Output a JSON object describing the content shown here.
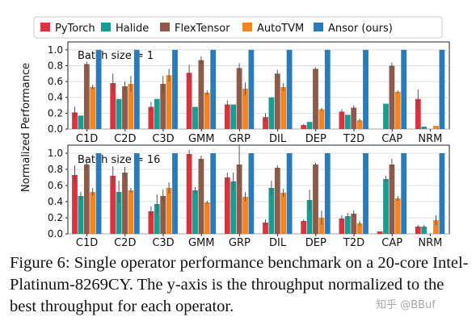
{
  "caption": "Figure 6: Single operator performance benchmark on a 20-core Intel-Platinum-8269CY. The y-axis is the throughput normalized to the best throughput for each operator.",
  "watermark": "知乎 @BBuf",
  "chart_data": {
    "type": "bar",
    "ylabel": "Normalized Performance",
    "ylim": [
      0,
      1.1
    ],
    "yticks": [
      "0.0",
      "0.2",
      "0.4",
      "0.6",
      "0.8",
      "1.0"
    ],
    "legend": {
      "placement": "top",
      "entries": [
        "PyTorch",
        "Halide",
        "FlexTensor",
        "AutoTVM",
        "Ansor (ours)"
      ]
    },
    "colors": {
      "PyTorch": "#d9333f",
      "Halide": "#1a9c93",
      "FlexTensor": "#8d5a4b",
      "AutoTVM": "#f28422",
      "Ansor (ours)": "#2b7bb9"
    },
    "categories": [
      "C1D",
      "C2D",
      "C3D",
      "GMM",
      "GRP",
      "DIL",
      "DEP",
      "T2D",
      "CAP",
      "NRM"
    ],
    "panels": [
      {
        "label": "Batch size = 1",
        "series": [
          {
            "name": "PyTorch",
            "values": [
              0.21,
              0.58,
              0.28,
              0.71,
              0.31,
              0.15,
              0.05,
              0.22,
              0.0,
              0.38
            ],
            "errors": [
              0.07,
              0.12,
              0.06,
              0.1,
              0.05,
              0.05,
              0.01,
              0.03,
              0.0,
              0.12
            ]
          },
          {
            "name": "Halide",
            "values": [
              0.17,
              0.38,
              0.38,
              0.28,
              0.31,
              0.4,
              0.09,
              0.18,
              0.32,
              0.03
            ]
          },
          {
            "name": "FlexTensor",
            "values": [
              0.82,
              0.54,
              0.57,
              0.87,
              0.77,
              0.7,
              0.76,
              0.27,
              0.8,
              0.0
            ],
            "errors": [
              0.03,
              0.06,
              0.1,
              0.05,
              0.06,
              0.05,
              0.02,
              0.03,
              0.04,
              0.0
            ]
          },
          {
            "name": "AutoTVM",
            "values": [
              0.53,
              0.57,
              0.68,
              0.46,
              0.51,
              0.53,
              0.25,
              0.11,
              0.47,
              0.04
            ],
            "errors": [
              0.03,
              0.1,
              0.08,
              0.03,
              0.08,
              0.05,
              0.02,
              0.02,
              0.02,
              0.0
            ]
          },
          {
            "name": "Ansor (ours)",
            "values": [
              1.0,
              1.0,
              1.0,
              1.0,
              1.0,
              1.0,
              1.0,
              1.0,
              1.0,
              1.0
            ]
          }
        ]
      },
      {
        "label": "Batch size = 16",
        "series": [
          {
            "name": "PyTorch",
            "values": [
              0.73,
              0.72,
              0.28,
              0.99,
              0.7,
              0.14,
              0.16,
              0.19,
              0.03,
              0.09
            ],
            "errors": [
              0.12,
              0.12,
              0.06,
              0.05,
              0.06,
              0.04,
              0.02,
              0.04,
              0.0,
              0.02
            ]
          },
          {
            "name": "Halide",
            "values": [
              0.47,
              0.52,
              0.37,
              0.54,
              0.65,
              0.57,
              0.42,
              0.22,
              0.68,
              0.09
            ],
            "errors": [
              0.05,
              0.14,
              0.12,
              0.04,
              0.11,
              0.09,
              0.13,
              0.04,
              0.04,
              0.02
            ]
          },
          {
            "name": "FlexTensor",
            "values": [
              0.86,
              0.76,
              0.47,
              0.93,
              0.86,
              0.82,
              0.86,
              0.25,
              0.86,
              0.0
            ],
            "errors": [
              0.06,
              0.07,
              0.08,
              0.04,
              0.25,
              0.03,
              0.02,
              0.04,
              0.07,
              0.0
            ]
          },
          {
            "name": "AutoTVM",
            "values": [
              0.52,
              0.54,
              0.57,
              0.39,
              0.46,
              0.51,
              0.2,
              0.13,
              0.44,
              0.17
            ],
            "errors": [
              0.05,
              0.03,
              0.07,
              0.02,
              0.06,
              0.05,
              0.09,
              0.03,
              0.03,
              0.06
            ]
          },
          {
            "name": "Ansor (ours)",
            "values": [
              1.0,
              1.0,
              1.0,
              1.0,
              1.0,
              1.0,
              1.0,
              1.0,
              1.0,
              1.0
            ]
          }
        ]
      }
    ]
  }
}
